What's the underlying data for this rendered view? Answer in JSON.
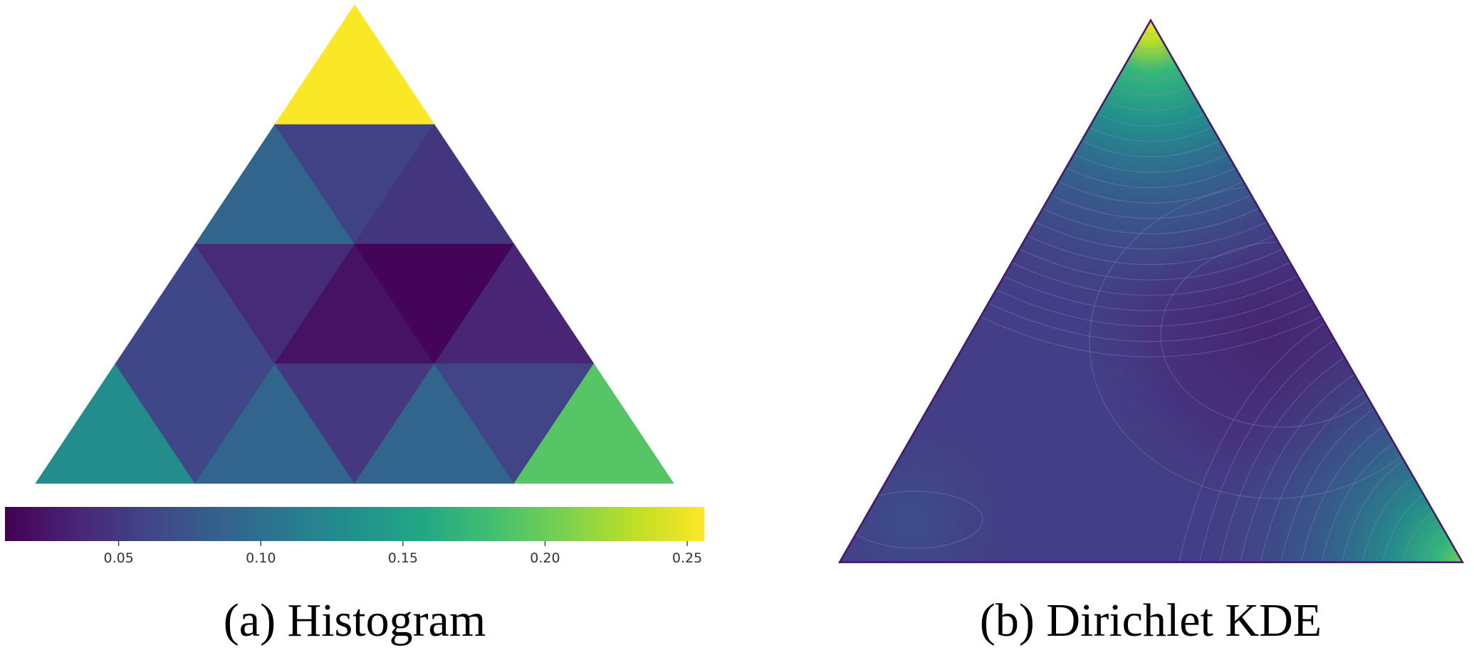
{
  "chart_data": [
    {
      "type": "heatmap",
      "subtype": "ternary-histogram",
      "caption": "(a) Histogram",
      "colormap": "viridis",
      "grid_divisions": 4,
      "cells": [
        {
          "row": 0,
          "orientation": "up",
          "index": 0,
          "value": 0.255
        },
        {
          "row": 1,
          "orientation": "up",
          "index": 0,
          "value": 0.09
        },
        {
          "row": 1,
          "orientation": "down",
          "index": 0,
          "value": 0.058
        },
        {
          "row": 1,
          "orientation": "up",
          "index": 1,
          "value": 0.048
        },
        {
          "row": 2,
          "orientation": "up",
          "index": 0,
          "value": 0.062
        },
        {
          "row": 2,
          "orientation": "down",
          "index": 0,
          "value": 0.04
        },
        {
          "row": 2,
          "orientation": "up",
          "index": 1,
          "value": 0.022
        },
        {
          "row": 2,
          "orientation": "down",
          "index": 1,
          "value": 0.012
        },
        {
          "row": 2,
          "orientation": "up",
          "index": 2,
          "value": 0.035
        },
        {
          "row": 3,
          "orientation": "up",
          "index": 0,
          "value": 0.128
        },
        {
          "row": 3,
          "orientation": "down",
          "index": 0,
          "value": 0.062
        },
        {
          "row": 3,
          "orientation": "up",
          "index": 1,
          "value": 0.09
        },
        {
          "row": 3,
          "orientation": "down",
          "index": 1,
          "value": 0.05
        },
        {
          "row": 3,
          "orientation": "up",
          "index": 2,
          "value": 0.09
        },
        {
          "row": 3,
          "orientation": "down",
          "index": 2,
          "value": 0.06
        },
        {
          "row": 3,
          "orientation": "up",
          "index": 3,
          "value": 0.19
        }
      ],
      "colorbar": {
        "range": [
          0.01,
          0.256
        ],
        "ticks": [
          0.05,
          0.1,
          0.15,
          0.2,
          0.25
        ],
        "tick_labels": [
          "0.05",
          "0.10",
          "0.15",
          "0.20",
          "0.25"
        ],
        "orientation": "horizontal"
      }
    },
    {
      "type": "contour",
      "subtype": "ternary-density",
      "caption": "(b) Dirichlet KDE",
      "colormap": "viridis",
      "high_density_regions": [
        "top vertex",
        "bottom-right vertex"
      ],
      "low_density_regions": [
        "center-right"
      ]
    }
  ]
}
